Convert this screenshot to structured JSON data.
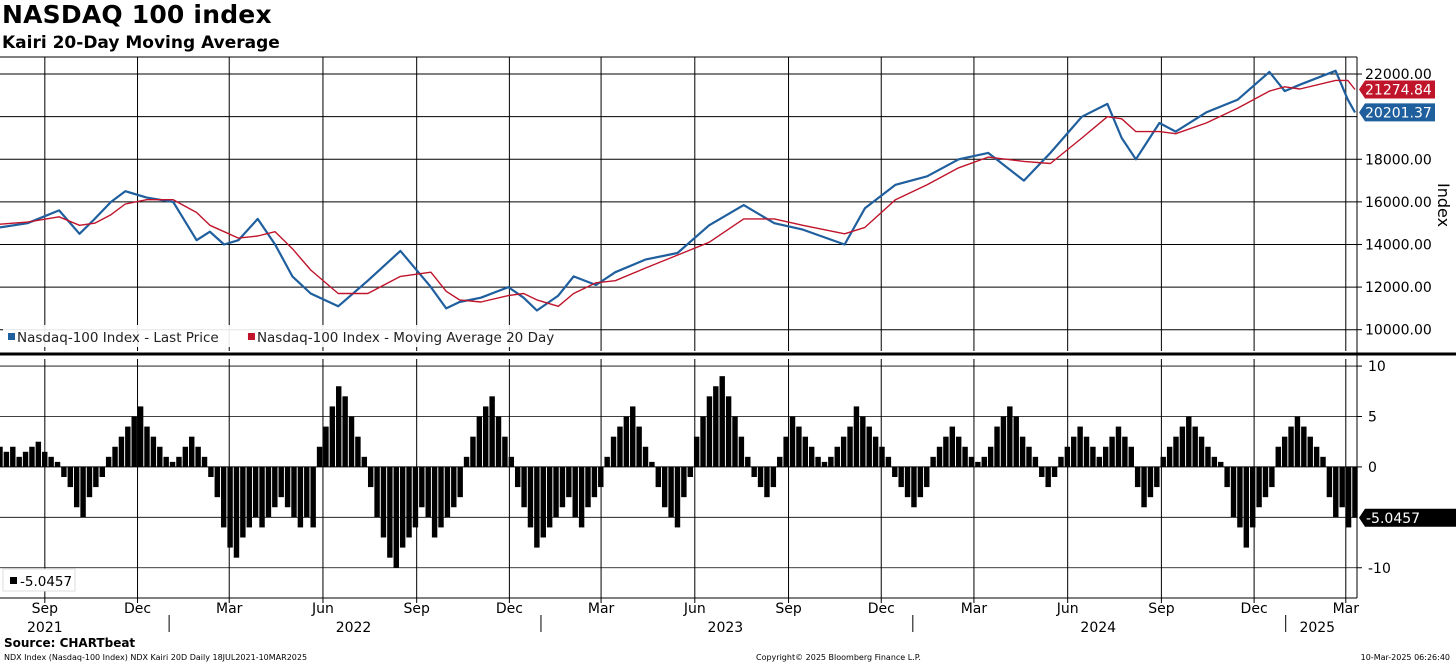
{
  "title": "NASDAQ 100 index",
  "subtitle": "Kairi 20-Day Moving Average",
  "footer": {
    "source": "Source: CHARTbeat",
    "left": "NDX Index (Nasdaq-100 Index) NDX Kairi 20D  Daily 18JUL2021-10MAR2025",
    "center": "Copyright© 2025 Bloomberg Finance L.P.",
    "right": "10-Mar-2025 06:26:40"
  },
  "colors": {
    "last_price": "#1f5f9e",
    "moving_average": "#c0142b",
    "kairi": "#000000"
  },
  "chart_data": [
    {
      "type": "line",
      "ylabel": "Index",
      "ylim": [
        9000,
        22800
      ],
      "yticks": [
        10000,
        12000,
        14000,
        16000,
        18000,
        22000
      ],
      "ytick_labels": [
        "10000.00",
        "12000.00",
        "14000.00",
        "16000.00",
        "18000.00",
        "22000.00"
      ],
      "legend_position": "bottom-left",
      "x": [
        "2021-07-19",
        "2021-08-15",
        "2021-09-15",
        "2021-10-05",
        "2021-10-20",
        "2021-11-05",
        "2021-11-19",
        "2021-12-10",
        "2022-01-05",
        "2022-01-28",
        "2022-02-10",
        "2022-02-24",
        "2022-03-10",
        "2022-03-29",
        "2022-04-15",
        "2022-05-02",
        "2022-05-20",
        "2022-06-16",
        "2022-07-15",
        "2022-08-16",
        "2022-09-15",
        "2022-09-30",
        "2022-10-13",
        "2022-11-03",
        "2022-11-30",
        "2022-12-15",
        "2022-12-28",
        "2023-01-18",
        "2023-02-02",
        "2023-02-24",
        "2023-03-15",
        "2023-04-14",
        "2023-05-15",
        "2023-06-15",
        "2023-07-19",
        "2023-08-18",
        "2023-09-15",
        "2023-10-26",
        "2023-11-15",
        "2023-12-15",
        "2024-01-15",
        "2024-02-15",
        "2024-03-15",
        "2024-04-19",
        "2024-05-15",
        "2024-06-15",
        "2024-07-10",
        "2024-07-24",
        "2024-08-07",
        "2024-08-30",
        "2024-09-15",
        "2024-10-15",
        "2024-11-15",
        "2024-12-16",
        "2024-12-31",
        "2025-01-15",
        "2025-02-19",
        "2025-03-03",
        "2025-03-10"
      ],
      "series": [
        {
          "name": "Nasdaq-100 Index - Last Price",
          "last_value_label": "20201.37",
          "values": [
            14800,
            15000,
            15600,
            14500,
            15200,
            16000,
            16500,
            16200,
            16000,
            14200,
            14600,
            14000,
            14200,
            15200,
            14000,
            12500,
            11700,
            11100,
            12300,
            13700,
            12000,
            11000,
            11300,
            11500,
            12000,
            11500,
            10900,
            11600,
            12500,
            12100,
            12700,
            13300,
            13600,
            14900,
            15850,
            15000,
            14700,
            14000,
            15700,
            16800,
            17200,
            18000,
            18300,
            17000,
            18300,
            20000,
            20600,
            19000,
            18000,
            19700,
            19300,
            20200,
            20800,
            22100,
            21200,
            21500,
            22150,
            20800,
            20201.37
          ]
        },
        {
          "name": "Nasdaq-100 Index - Moving Average 20 Day",
          "last_value_label": "21274.84",
          "values": [
            14950,
            15050,
            15300,
            14900,
            15000,
            15400,
            15900,
            16100,
            16100,
            15500,
            14900,
            14600,
            14300,
            14400,
            14600,
            13800,
            12800,
            11700,
            11700,
            12500,
            12700,
            11800,
            11400,
            11300,
            11600,
            11700,
            11400,
            11100,
            11700,
            12200,
            12300,
            12900,
            13500,
            14100,
            15200,
            15200,
            14900,
            14500,
            14800,
            16100,
            16800,
            17600,
            18100,
            17900,
            17800,
            19000,
            20000,
            19900,
            19300,
            19300,
            19200,
            19700,
            20400,
            21200,
            21400,
            21300,
            21700,
            21700,
            21274.84
          ]
        }
      ]
    },
    {
      "type": "bar",
      "ylim": [
        -13,
        11
      ],
      "yticks": [
        -10,
        0,
        5,
        10
      ],
      "ytick_labels": [
        "-10",
        "0",
        "5",
        "10"
      ],
      "legend_position": "bottom-left",
      "x_start": "2021-07-19",
      "x_end": "2025-03-10",
      "series": [
        {
          "name": "-5.0457",
          "last_value_label": "-5.0457",
          "values": [
            2,
            1.5,
            2,
            1,
            1.5,
            2,
            2.5,
            1.5,
            1,
            0.5,
            -1,
            -2,
            -4,
            -5,
            -3,
            -2,
            -1,
            1,
            2,
            3,
            4,
            5,
            6,
            4,
            3,
            2,
            1,
            0.5,
            1,
            2,
            3,
            2,
            1,
            -1,
            -3,
            -6,
            -8,
            -9,
            -7,
            -6,
            -5,
            -6,
            -5,
            -4,
            -3,
            -4,
            -5,
            -6,
            -5,
            -6,
            2,
            4,
            6,
            8,
            7,
            5,
            3,
            1,
            -2,
            -5,
            -7,
            -9,
            -10,
            -8,
            -7,
            -6,
            -4,
            -5,
            -7,
            -6,
            -5,
            -4,
            -3,
            1,
            3,
            5,
            6,
            7,
            5,
            3,
            1,
            -2,
            -4,
            -6,
            -8,
            -7,
            -6,
            -5,
            -4,
            -3,
            -5,
            -6,
            -4,
            -3,
            -2,
            1,
            3,
            4,
            5,
            6,
            4,
            2,
            0.5,
            -2,
            -4,
            -5,
            -6,
            -3,
            -1,
            3,
            5,
            7,
            8,
            9,
            7,
            5,
            3,
            1,
            -1,
            -2,
            -3,
            -2,
            1,
            3,
            5,
            4,
            3,
            2,
            1,
            0.5,
            1,
            2,
            3,
            4,
            6,
            5,
            4,
            3,
            2,
            1,
            -1,
            -2,
            -3,
            -4,
            -3,
            -2,
            1,
            2,
            3,
            4,
            3,
            2,
            1,
            0.5,
            1,
            2,
            4,
            5,
            6,
            5,
            3,
            2,
            1,
            -1,
            -2,
            -1,
            1,
            2,
            3,
            4,
            3,
            2,
            1,
            2,
            3,
            4,
            3,
            2,
            -2,
            -4,
            -3,
            -2,
            1,
            2,
            3,
            4,
            5,
            4,
            3,
            2,
            1,
            0.5,
            -2,
            -5,
            -6,
            -8,
            -6,
            -4,
            -3,
            -2,
            2,
            3,
            4,
            5,
            4,
            3,
            2,
            1,
            -3,
            -5,
            -4,
            -6,
            -5.0457
          ]
        }
      ]
    }
  ],
  "x_axis": {
    "months": [
      "Sep",
      "Dec",
      "Mar",
      "Jun",
      "Sep",
      "Dec",
      "Mar",
      "Jun",
      "Sep",
      "Dec",
      "Mar",
      "Jun",
      "Sep",
      "Dec",
      "Mar"
    ],
    "month_dates": [
      "2021-09-01",
      "2021-12-01",
      "2022-03-01",
      "2022-06-01",
      "2022-09-01",
      "2022-12-01",
      "2023-03-01",
      "2023-06-01",
      "2023-09-01",
      "2023-12-01",
      "2024-03-01",
      "2024-06-01",
      "2024-09-01",
      "2024-12-01",
      "2025-03-01"
    ],
    "years": [
      "2021",
      "2022",
      "2023",
      "2024",
      "2025"
    ],
    "year_dates": [
      "2021-09-01",
      "2022-07-01",
      "2023-07-01",
      "2024-07-01",
      "2025-02-01"
    ],
    "year_separators": [
      "2022-01-01",
      "2023-01-01",
      "2024-01-01",
      "2025-01-01"
    ]
  }
}
